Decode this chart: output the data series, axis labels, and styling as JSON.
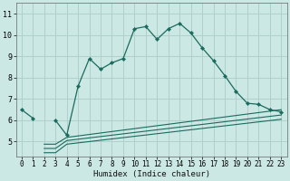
{
  "xlabel": "Humidex (Indice chaleur)",
  "bg_color": "#cce8e4",
  "grid_color": "#b0d0cc",
  "line_color": "#1a6b5e",
  "x_main": [
    0,
    1,
    2,
    3,
    4,
    5,
    6,
    7,
    8,
    9,
    10,
    11,
    12,
    13,
    14,
    15,
    16,
    17,
    18,
    19,
    20,
    21,
    22,
    23
  ],
  "y_main": [
    6.5,
    6.1,
    null,
    6.0,
    5.3,
    7.6,
    8.9,
    8.4,
    8.7,
    8.9,
    10.3,
    10.4,
    9.8,
    10.3,
    10.55,
    10.1,
    9.4,
    8.8,
    8.1,
    7.35,
    6.8,
    6.75,
    6.5,
    6.4
  ],
  "lower_lines": [
    {
      "x": [
        2,
        3,
        4,
        23
      ],
      "y": [
        4.88,
        4.88,
        5.2,
        6.5
      ]
    },
    {
      "x": [
        2,
        3,
        4,
        23
      ],
      "y": [
        4.68,
        4.68,
        5.05,
        6.25
      ]
    },
    {
      "x": [
        2,
        3,
        4,
        23
      ],
      "y": [
        4.48,
        4.48,
        4.88,
        6.05
      ]
    }
  ],
  "ylim": [
    4.3,
    11.5
  ],
  "xlim": [
    -0.5,
    23.5
  ],
  "yticks": [
    5,
    6,
    7,
    8,
    9,
    10,
    11
  ],
  "xticks": [
    0,
    1,
    2,
    3,
    4,
    5,
    6,
    7,
    8,
    9,
    10,
    11,
    12,
    13,
    14,
    15,
    16,
    17,
    18,
    19,
    20,
    21,
    22,
    23
  ],
  "xlabel_fontsize": 6.5,
  "tick_fontsize": 5.5
}
